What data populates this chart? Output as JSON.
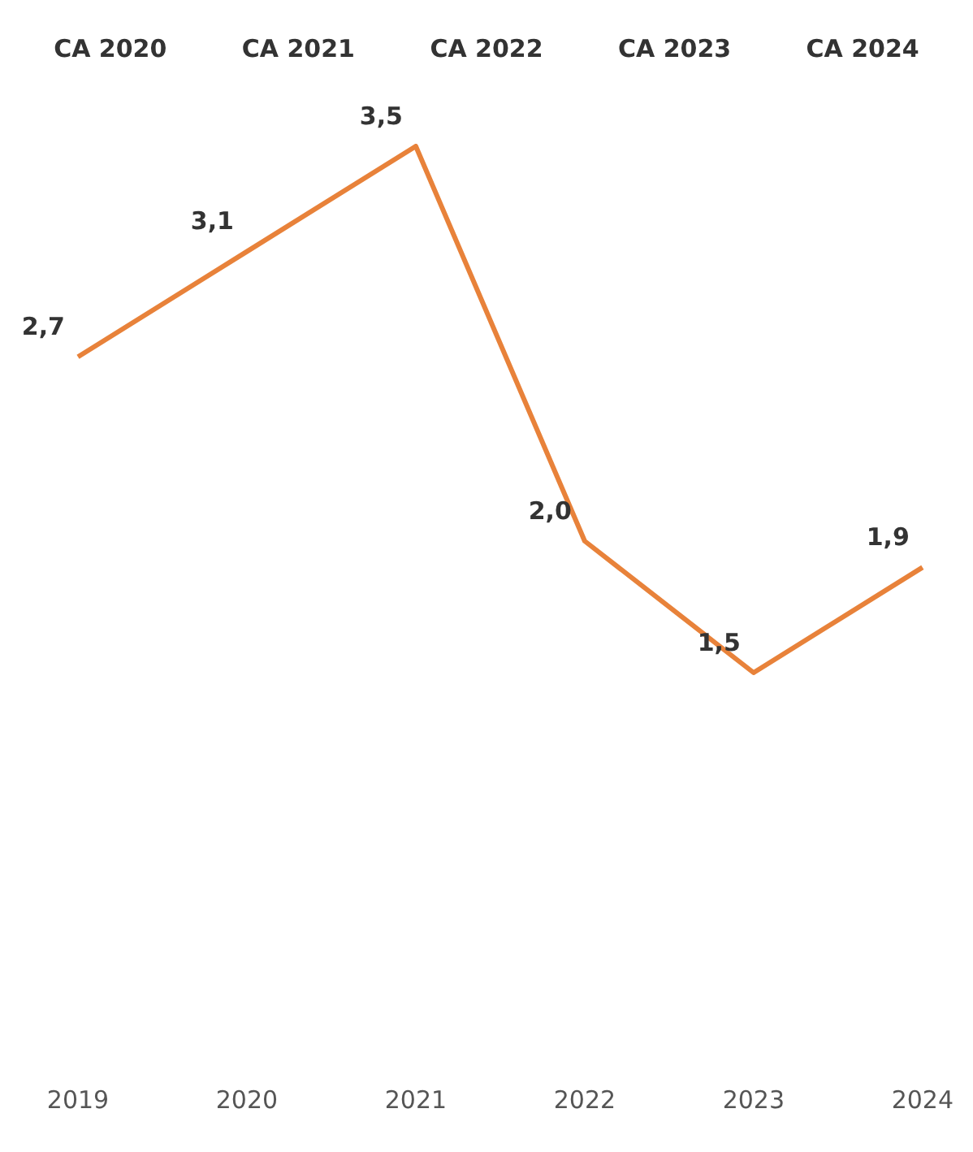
{
  "chart_data": {
    "type": "line",
    "categories": [
      "2019",
      "2020",
      "2021",
      "2022",
      "2023",
      "2024"
    ],
    "series": [
      {
        "color": "#e8823a",
        "values": [
          2.7,
          3.1,
          3.5,
          2.0,
          1.5,
          1.9
        ],
        "value_labels": [
          "2,7",
          "3,1",
          "3,5",
          "2,0",
          "1,5",
          "1,9"
        ]
      }
    ],
    "marker": "none",
    "grid": false,
    "legend": false,
    "annotations": [
      "CA 2020",
      "CA 2021",
      "CA 2022",
      "CA 2023",
      "CA 2024"
    ]
  }
}
